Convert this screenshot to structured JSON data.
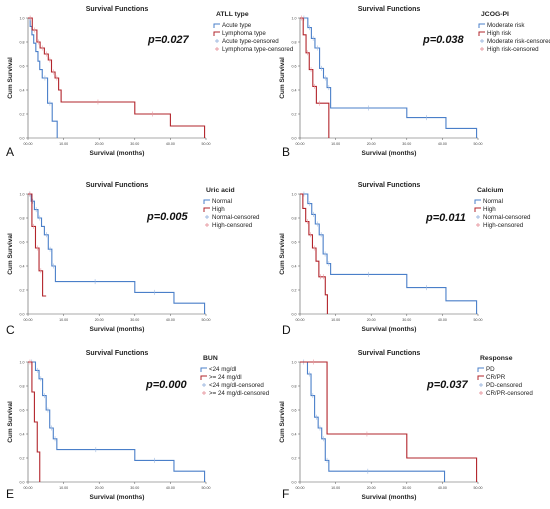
{
  "colors": {
    "blue": "#4a7fc9",
    "red": "#b2242b",
    "censor_blue": "#9fb9e0",
    "censor_red": "#e79aa2"
  },
  "chart_data": [
    {
      "panel": "A",
      "type": "line",
      "step": true,
      "title": "Survival Functions",
      "xlabel": "Survival (months)",
      "ylabel": "Cum Survival",
      "xlim": [
        0,
        50
      ],
      "ylim": [
        0,
        1
      ],
      "xticks": [
        "00.00",
        "10.00",
        "20.00",
        "30.00",
        "40.00",
        "50.00"
      ],
      "yticks": [
        "0.0",
        "0.2",
        "0.4",
        "0.6",
        "0.8",
        "1.0"
      ],
      "pvalue": "p=0.027",
      "legend_title": "ATLL type",
      "legend": [
        "Acute type",
        "Lymphoma type",
        "Acute type-censored",
        "Lymphoma type-censored"
      ],
      "series": [
        {
          "name": "Acute type",
          "color": "blue",
          "x": [
            0,
            0.6,
            1.1,
            1.6,
            2.2,
            2.8,
            3.3,
            4,
            5.5,
            6.8,
            8.2
          ],
          "y": [
            1,
            0.93,
            0.86,
            0.79,
            0.72,
            0.64,
            0.57,
            0.5,
            0.29,
            0.14,
            0
          ]
        },
        {
          "name": "Lymphoma type",
          "color": "red",
          "x": [
            0,
            1.2,
            2.5,
            3.4,
            4.6,
            5.7,
            6.6,
            7.6,
            8.6,
            9.3,
            30,
            40,
            49.6
          ],
          "y": [
            1,
            0.9,
            0.8,
            0.75,
            0.7,
            0.65,
            0.55,
            0.5,
            0.4,
            0.3,
            0.2,
            0.1,
            0
          ]
        }
      ]
    },
    {
      "panel": "B",
      "type": "line",
      "step": true,
      "title": "Survival Functions",
      "xlabel": "Survival (months)",
      "ylabel": "Cum Survival",
      "xlim": [
        0,
        50
      ],
      "ylim": [
        0,
        1
      ],
      "xticks": [
        "00.00",
        "10.00",
        "20.00",
        "30.00",
        "40.00",
        "50.00"
      ],
      "yticks": [
        "0.0",
        "0.2",
        "0.4",
        "0.6",
        "0.8",
        "1.0"
      ],
      "pvalue": "p=0.038",
      "legend_title": "JCOG-PI",
      "legend": [
        "Moderate risk",
        "High risk",
        "Moderate risk-censored",
        "High risk-censored"
      ],
      "series": [
        {
          "name": "Moderate risk",
          "color": "blue",
          "x": [
            0,
            2.2,
            3.2,
            4.2,
            5.5,
            6.6,
            7.6,
            8.6,
            30,
            41,
            49.6
          ],
          "y": [
            1,
            0.92,
            0.83,
            0.75,
            0.58,
            0.5,
            0.42,
            0.25,
            0.17,
            0.08,
            0
          ]
        },
        {
          "name": "High risk",
          "color": "red",
          "x": [
            0,
            0.9,
            1.7,
            2.6,
            3.6,
            4.6,
            6.4,
            8.1
          ],
          "y": [
            1,
            0.86,
            0.71,
            0.57,
            0.43,
            0.29,
            0.29,
            0
          ]
        }
      ]
    },
    {
      "panel": "C",
      "type": "line",
      "step": true,
      "title": "Survival Functions",
      "xlabel": "Survival (months)",
      "ylabel": "Cum Survival",
      "xlim": [
        0,
        50
      ],
      "ylim": [
        0,
        1
      ],
      "xticks": [
        "00.00",
        "10.00",
        "20.00",
        "30.00",
        "40.00",
        "50.00"
      ],
      "yticks": [
        "0.0",
        "0.2",
        "0.4",
        "0.6",
        "0.8",
        "1.0"
      ],
      "pvalue": "p=0.005",
      "legend_title": "Uric acid",
      "legend": [
        "Normal",
        "High",
        "Normal-censored",
        "High-censored"
      ],
      "series": [
        {
          "name": "Normal",
          "color": "blue",
          "x": [
            0,
            0.9,
            1.8,
            2.8,
            3.8,
            4.6,
            5.7,
            6.7,
            7.7,
            30,
            41,
            49.6
          ],
          "y": [
            1,
            0.94,
            0.87,
            0.8,
            0.73,
            0.66,
            0.54,
            0.4,
            0.27,
            0.18,
            0.09,
            0
          ]
        },
        {
          "name": "High",
          "color": "red",
          "x": [
            0,
            1.1,
            2.1,
            3.1,
            4.1,
            5.1
          ],
          "y": [
            1,
            0.73,
            0.55,
            0.36,
            0.15,
            0.15
          ]
        }
      ]
    },
    {
      "panel": "D",
      "type": "line",
      "step": true,
      "title": "Survival Functions",
      "xlabel": "Survival (months)",
      "ylabel": "Cum Survival",
      "xlim": [
        0,
        50
      ],
      "ylim": [
        0,
        1
      ],
      "xticks": [
        "00.00",
        "10.00",
        "20.00",
        "30.00",
        "40.00",
        "50.00"
      ],
      "yticks": [
        "0.0",
        "0.2",
        "0.4",
        "0.6",
        "0.8",
        "1.0"
      ],
      "pvalue": "p=0.011",
      "legend_title": "Calcium",
      "legend": [
        "Normal",
        "High",
        "Normal-censored",
        "High-censored"
      ],
      "series": [
        {
          "name": "Normal",
          "color": "blue",
          "x": [
            0,
            2.2,
            3.3,
            4.3,
            5.4,
            6.5,
            7.6,
            8.6,
            30,
            41,
            49.6
          ],
          "y": [
            1,
            0.92,
            0.83,
            0.75,
            0.66,
            0.5,
            0.42,
            0.33,
            0.22,
            0.11,
            0
          ]
        },
        {
          "name": "High",
          "color": "red",
          "x": [
            0,
            0.8,
            1.6,
            2.5,
            3.5,
            4.5,
            5.3,
            6.2,
            7.1,
            7.7
          ],
          "y": [
            1,
            0.88,
            0.77,
            0.66,
            0.55,
            0.44,
            0.31,
            0.31,
            0.16,
            0
          ]
        }
      ]
    },
    {
      "panel": "E",
      "type": "line",
      "step": true,
      "title": "Survival Functions",
      "xlabel": "Survival (months)",
      "ylabel": "Cum Survival",
      "xlim": [
        0,
        50
      ],
      "ylim": [
        0,
        1
      ],
      "xticks": [
        "00.00",
        "10.00",
        "20.00",
        "30.00",
        "40.00",
        "50.00"
      ],
      "yticks": [
        "0.0",
        "0.2",
        "0.4",
        "0.6",
        "0.8",
        "1.0"
      ],
      "pvalue": "p=0.000",
      "legend_title": "BUN",
      "legend": [
        "<24 mg/dl",
        ">= 24 mg/dl",
        "<24 mg/dl-censored",
        ">= 24 mg/dl-censored"
      ],
      "series": [
        {
          "name": "<24 mg/dl",
          "color": "blue",
          "x": [
            0,
            2.1,
            3.1,
            4.1,
            5.1,
            6.1,
            7.1,
            8.1,
            30,
            41,
            49.6
          ],
          "y": [
            1,
            0.93,
            0.86,
            0.72,
            0.6,
            0.45,
            0.36,
            0.27,
            0.18,
            0.09,
            0
          ]
        },
        {
          "name": ">= 24 mg/dl",
          "color": "red",
          "x": [
            0,
            1.1,
            1.8,
            2.6,
            3.3
          ],
          "y": [
            1,
            0.75,
            0.5,
            0.25,
            0
          ]
        }
      ]
    },
    {
      "panel": "F",
      "type": "line",
      "step": true,
      "title": "Survival Functions",
      "xlabel": "Survival (months)",
      "ylabel": "Cum Survival",
      "xlim": [
        0,
        50
      ],
      "ylim": [
        0,
        1
      ],
      "xticks": [
        "00.00",
        "10.00",
        "20.00",
        "30.00",
        "40.00",
        "50.00"
      ],
      "yticks": [
        "0.0",
        "0.2",
        "0.4",
        "0.6",
        "0.8",
        "1.0"
      ],
      "pvalue": "p=0.037",
      "legend_title": "Response",
      "legend": [
        "PD",
        "CR/PR",
        "PD-censored",
        "CR/PR-censored"
      ],
      "series": [
        {
          "name": "PD",
          "color": "blue",
          "x": [
            0,
            2.1,
            3.1,
            4.1,
            5.1,
            6.1,
            7.1,
            8.1,
            30,
            40.6
          ],
          "y": [
            1,
            0.9,
            0.72,
            0.54,
            0.45,
            0.36,
            0.18,
            0.09,
            0.09,
            0
          ]
        },
        {
          "name": "CR/PR",
          "color": "red",
          "x": [
            0,
            7.6,
            30,
            49.6
          ],
          "y": [
            1,
            0.4,
            0.2,
            0
          ]
        }
      ]
    }
  ]
}
